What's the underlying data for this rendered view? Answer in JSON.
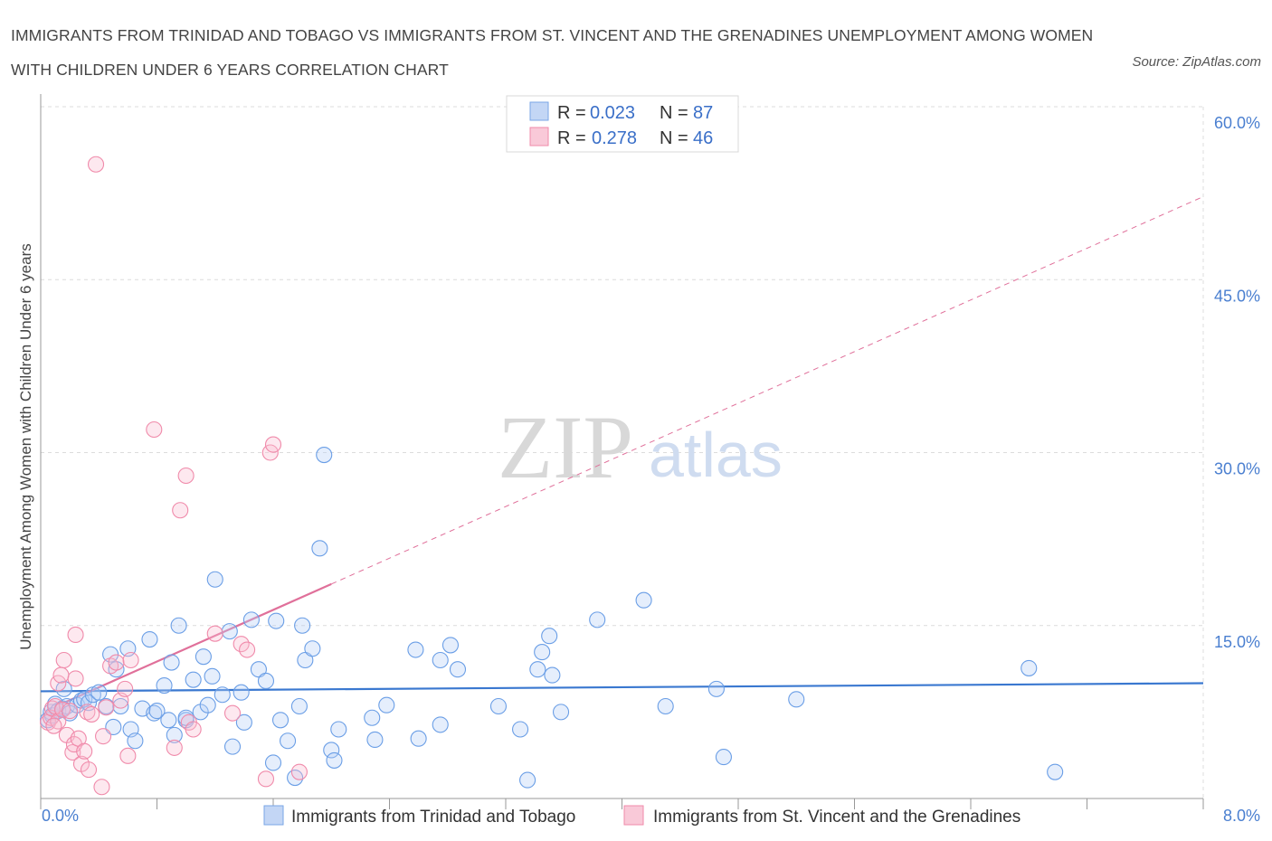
{
  "title": "IMMIGRANTS FROM TRINIDAD AND TOBAGO VS IMMIGRANTS FROM ST. VINCENT AND THE GRENADINES UNEMPLOYMENT AMONG WOMEN WITH CHILDREN UNDER 6 YEARS CORRELATION CHART",
  "source": "Source: ZipAtlas.com",
  "watermark": {
    "zip": "ZIP",
    "atlas": "atlas"
  },
  "legend": {
    "rows": [
      {
        "r_label": "R =",
        "r_value": "0.023",
        "n_label": "N =",
        "n_value": "87"
      },
      {
        "r_label": "R =",
        "r_value": "0.278",
        "n_label": "N =",
        "n_value": "46"
      }
    ]
  },
  "chart_data": {
    "type": "scatter",
    "title": "IMMIGRANTS FROM TRINIDAD AND TOBAGO VS IMMIGRANTS FROM ST. VINCENT AND THE GRENADINES UNEMPLOYMENT AMONG WOMEN WITH CHILDREN UNDER 6 YEARS CORRELATION CHART",
    "xlabel": "",
    "ylabel": "Unemployment Among Women with Children Under 6 years",
    "xlim": [
      0,
      8
    ],
    "ylim": [
      0,
      60
    ],
    "x_tick_labels": [
      "0.0%",
      "8.0%"
    ],
    "y_ticks": [
      15,
      30,
      45,
      60
    ],
    "y_tick_labels": [
      "15.0%",
      "30.0%",
      "45.0%",
      "60.0%"
    ],
    "grid": true,
    "legend_placement": "bottom",
    "colors": {
      "blue": "#6a9ee6",
      "blue_line": "#3a78d0",
      "pink": "#f08aaa",
      "pink_line": "#e0709a"
    },
    "series": [
      {
        "name": "Immigrants from Trinidad and Tobago",
        "color": "blue",
        "trend": {
          "x": [
            0,
            8
          ],
          "y": [
            9.3,
            10.0
          ],
          "style": "solid"
        },
        "points": [
          [
            0.05,
            6.8
          ],
          [
            0.07,
            7.5
          ],
          [
            0.08,
            7.2
          ],
          [
            0.1,
            8.2
          ],
          [
            0.12,
            7.6
          ],
          [
            0.15,
            7.8
          ],
          [
            0.18,
            8.0
          ],
          [
            0.2,
            7.4
          ],
          [
            0.25,
            8.1
          ],
          [
            0.28,
            8.5
          ],
          [
            0.3,
            8.6
          ],
          [
            0.33,
            8.3
          ],
          [
            0.36,
            9.0
          ],
          [
            0.4,
            9.2
          ],
          [
            0.45,
            8.0
          ],
          [
            0.48,
            12.5
          ],
          [
            0.52,
            11.2
          ],
          [
            0.55,
            8.0
          ],
          [
            0.6,
            13.0
          ],
          [
            0.62,
            6.0
          ],
          [
            0.65,
            5.0
          ],
          [
            0.7,
            7.8
          ],
          [
            0.75,
            13.8
          ],
          [
            0.78,
            7.4
          ],
          [
            0.8,
            7.6
          ],
          [
            0.85,
            9.8
          ],
          [
            0.88,
            6.8
          ],
          [
            0.9,
            11.8
          ],
          [
            0.92,
            5.5
          ],
          [
            0.95,
            15.0
          ],
          [
            1.0,
            6.8
          ],
          [
            1.05,
            10.3
          ],
          [
            1.1,
            7.5
          ],
          [
            1.12,
            12.3
          ],
          [
            1.15,
            8.1
          ],
          [
            1.18,
            10.6
          ],
          [
            1.2,
            19.0
          ],
          [
            1.25,
            9.0
          ],
          [
            1.3,
            14.5
          ],
          [
            1.32,
            4.5
          ],
          [
            1.38,
            9.2
          ],
          [
            1.4,
            6.6
          ],
          [
            1.45,
            15.5
          ],
          [
            1.5,
            11.2
          ],
          [
            1.55,
            10.2
          ],
          [
            1.6,
            3.1
          ],
          [
            1.62,
            15.4
          ],
          [
            1.65,
            6.8
          ],
          [
            1.7,
            5.0
          ],
          [
            1.75,
            1.8
          ],
          [
            1.78,
            8.0
          ],
          [
            1.8,
            15.0
          ],
          [
            1.82,
            12.0
          ],
          [
            1.87,
            13.0
          ],
          [
            1.92,
            21.7
          ],
          [
            1.95,
            29.8
          ],
          [
            2.0,
            4.2
          ],
          [
            2.02,
            3.3
          ],
          [
            2.05,
            6.0
          ],
          [
            2.28,
            7.0
          ],
          [
            2.3,
            5.1
          ],
          [
            2.38,
            8.1
          ],
          [
            2.6,
            5.2
          ],
          [
            2.58,
            12.9
          ],
          [
            2.75,
            6.4
          ],
          [
            2.75,
            12.0
          ],
          [
            2.82,
            13.3
          ],
          [
            2.87,
            11.2
          ],
          [
            3.15,
            8.0
          ],
          [
            3.3,
            6.0
          ],
          [
            3.35,
            1.6
          ],
          [
            3.42,
            11.2
          ],
          [
            3.45,
            12.7
          ],
          [
            3.5,
            14.1
          ],
          [
            3.52,
            10.7
          ],
          [
            3.58,
            7.5
          ],
          [
            3.83,
            15.5
          ],
          [
            4.15,
            17.2
          ],
          [
            4.3,
            8.0
          ],
          [
            4.65,
            9.5
          ],
          [
            4.7,
            3.6
          ],
          [
            5.2,
            8.6
          ],
          [
            6.8,
            11.3
          ],
          [
            6.98,
            2.3
          ],
          [
            0.16,
            9.5
          ],
          [
            0.5,
            6.2
          ],
          [
            1.0,
            7.0
          ]
        ]
      },
      {
        "name": "Immigrants from St. Vincent and the Grenadines",
        "color": "pink",
        "trend": {
          "x_solid": [
            0.15,
            2.0
          ],
          "x_dashed": [
            2.0,
            8.0
          ],
          "y_at_0": 7.4,
          "slope": 5.6,
          "style": "solid-then-dashed"
        },
        "points": [
          [
            0.05,
            6.6
          ],
          [
            0.07,
            7.0
          ],
          [
            0.08,
            7.8
          ],
          [
            0.1,
            8.0
          ],
          [
            0.12,
            6.7
          ],
          [
            0.12,
            10.0
          ],
          [
            0.14,
            10.7
          ],
          [
            0.15,
            7.7
          ],
          [
            0.16,
            12.0
          ],
          [
            0.18,
            5.5
          ],
          [
            0.2,
            7.6
          ],
          [
            0.22,
            4.0
          ],
          [
            0.23,
            4.7
          ],
          [
            0.24,
            10.4
          ],
          [
            0.24,
            14.2
          ],
          [
            0.26,
            5.2
          ],
          [
            0.28,
            3.0
          ],
          [
            0.3,
            4.1
          ],
          [
            0.32,
            7.5
          ],
          [
            0.33,
            2.5
          ],
          [
            0.35,
            7.3
          ],
          [
            0.38,
            55.0
          ],
          [
            0.42,
            1.0
          ],
          [
            0.43,
            5.4
          ],
          [
            0.45,
            7.9
          ],
          [
            0.48,
            11.5
          ],
          [
            0.52,
            11.8
          ],
          [
            0.55,
            8.5
          ],
          [
            0.58,
            9.5
          ],
          [
            0.6,
            3.7
          ],
          [
            0.62,
            12.0
          ],
          [
            0.78,
            32.0
          ],
          [
            0.92,
            4.4
          ],
          [
            0.96,
            25.0
          ],
          [
            1.0,
            28.0
          ],
          [
            1.02,
            6.6
          ],
          [
            1.05,
            6.0
          ],
          [
            1.2,
            14.3
          ],
          [
            1.32,
            7.4
          ],
          [
            1.38,
            13.4
          ],
          [
            1.42,
            12.9
          ],
          [
            1.55,
            1.7
          ],
          [
            1.58,
            30.0
          ],
          [
            1.6,
            30.7
          ],
          [
            1.78,
            2.3
          ],
          [
            0.09,
            6.3
          ]
        ]
      }
    ]
  },
  "bottom_legend": [
    {
      "label": "Immigrants from Trinidad and Tobago",
      "color": "blue"
    },
    {
      "label": "Immigrants from St. Vincent and the Grenadines",
      "color": "pink"
    }
  ]
}
